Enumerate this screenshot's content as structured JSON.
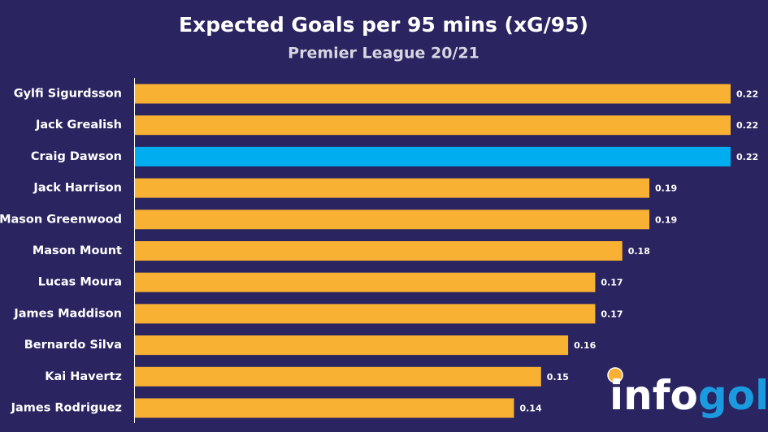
{
  "chart_data": {
    "type": "bar",
    "orientation": "horizontal",
    "title": "Expected Goals per 95 mins (xG/95)",
    "subtitle": "Premier League 20/21",
    "categories": [
      "Gylfi Sigurdsson",
      "Jack Grealish",
      "Craig Dawson",
      "Jack Harrison",
      "Mason Greenwood",
      "Mason Mount",
      "Lucas Moura",
      "James Maddison",
      "Bernardo Silva",
      "Kai Havertz",
      "James Rodriguez"
    ],
    "values": [
      0.22,
      0.22,
      0.22,
      0.19,
      0.19,
      0.18,
      0.17,
      0.17,
      0.16,
      0.15,
      0.14
    ],
    "colors": [
      "#f8b133",
      "#f8b133",
      "#00aeef",
      "#f8b133",
      "#f8b133",
      "#f8b133",
      "#f8b133",
      "#f8b133",
      "#f8b133",
      "#f8b133",
      "#f8b133"
    ]
  },
  "logo": [
    "info",
    "gol"
  ]
}
